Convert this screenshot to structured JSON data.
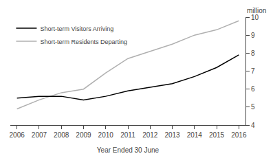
{
  "chart_data": {
    "type": "line",
    "x": [
      2006,
      2007,
      2008,
      2009,
      2010,
      2011,
      2012,
      2013,
      2014,
      2015,
      2016
    ],
    "series": [
      {
        "name": "Short-term Residents Departing",
        "color": "#b0b0b0",
        "values": [
          4.9,
          5.4,
          5.8,
          6.0,
          6.9,
          7.7,
          8.1,
          8.5,
          9.0,
          9.3,
          9.8
        ]
      },
      {
        "name": "Short-term Visitors Arriving",
        "color": "#000000",
        "values": [
          5.5,
          5.6,
          5.6,
          5.4,
          5.6,
          5.9,
          6.1,
          6.3,
          6.7,
          7.2,
          7.9
        ]
      }
    ],
    "xlabel": "Year Ended 30 June",
    "ylabel": "million",
    "xlim": [
      2005.7,
      2016.3
    ],
    "xticks": [
      2006,
      2007,
      2008,
      2009,
      2010,
      2011,
      2012,
      2013,
      2014,
      2015,
      2016
    ],
    "ylim": [
      4,
      10
    ],
    "yticks": [
      4,
      5,
      6,
      7,
      8,
      9,
      10
    ],
    "grid": false,
    "legend": "upper left"
  }
}
